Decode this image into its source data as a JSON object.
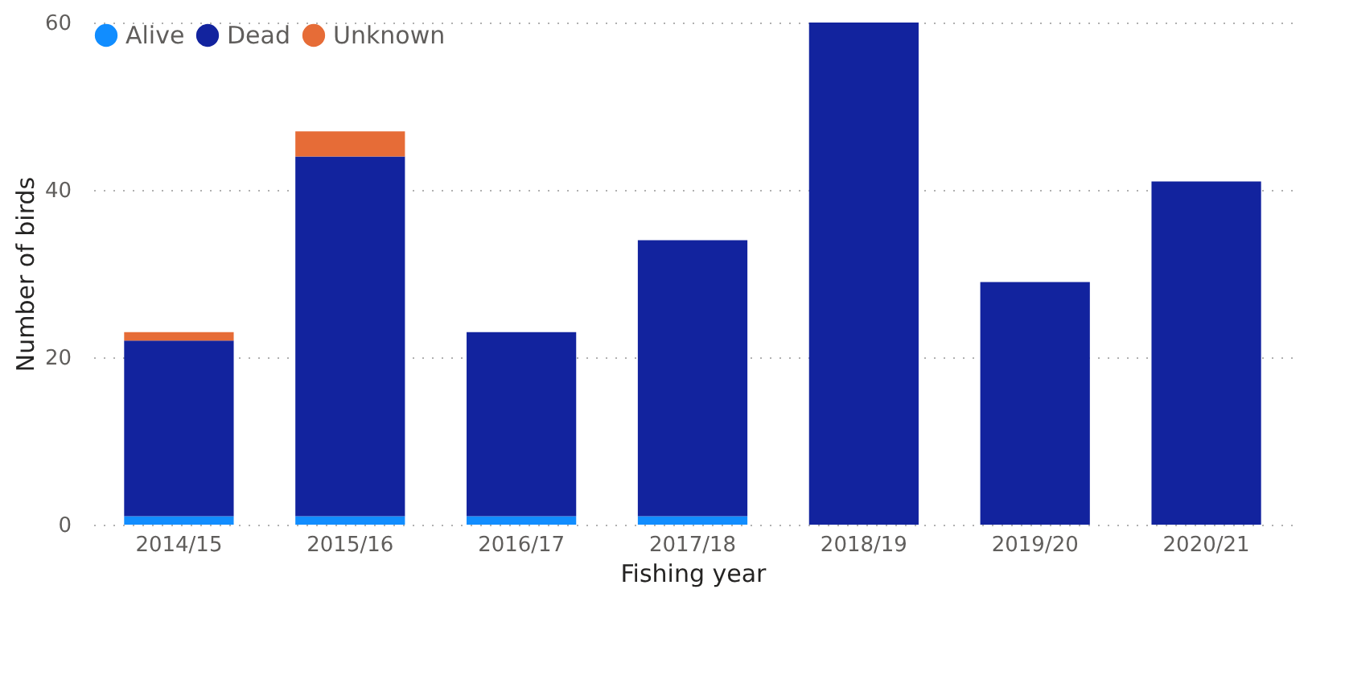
{
  "chart_data": {
    "type": "bar",
    "stacked": true,
    "xlabel": "Fishing year",
    "ylabel": "Number of birds",
    "categories": [
      "2014/15",
      "2015/16",
      "2016/17",
      "2017/18",
      "2018/19",
      "2019/20",
      "2020/21"
    ],
    "series": [
      {
        "name": "Alive",
        "color": "#118dff",
        "values": [
          1,
          1,
          1,
          1,
          0,
          0,
          0
        ]
      },
      {
        "name": "Dead",
        "color": "#12239e",
        "values": [
          21,
          43,
          22,
          33,
          60,
          29,
          41
        ]
      },
      {
        "name": "Unknown",
        "color": "#e66c37",
        "values": [
          1,
          3,
          0,
          0,
          0,
          0,
          0
        ]
      }
    ],
    "ylim": [
      0,
      60
    ],
    "yticks": [
      0,
      20,
      40,
      60
    ],
    "grid": "y",
    "legend": "top left"
  }
}
